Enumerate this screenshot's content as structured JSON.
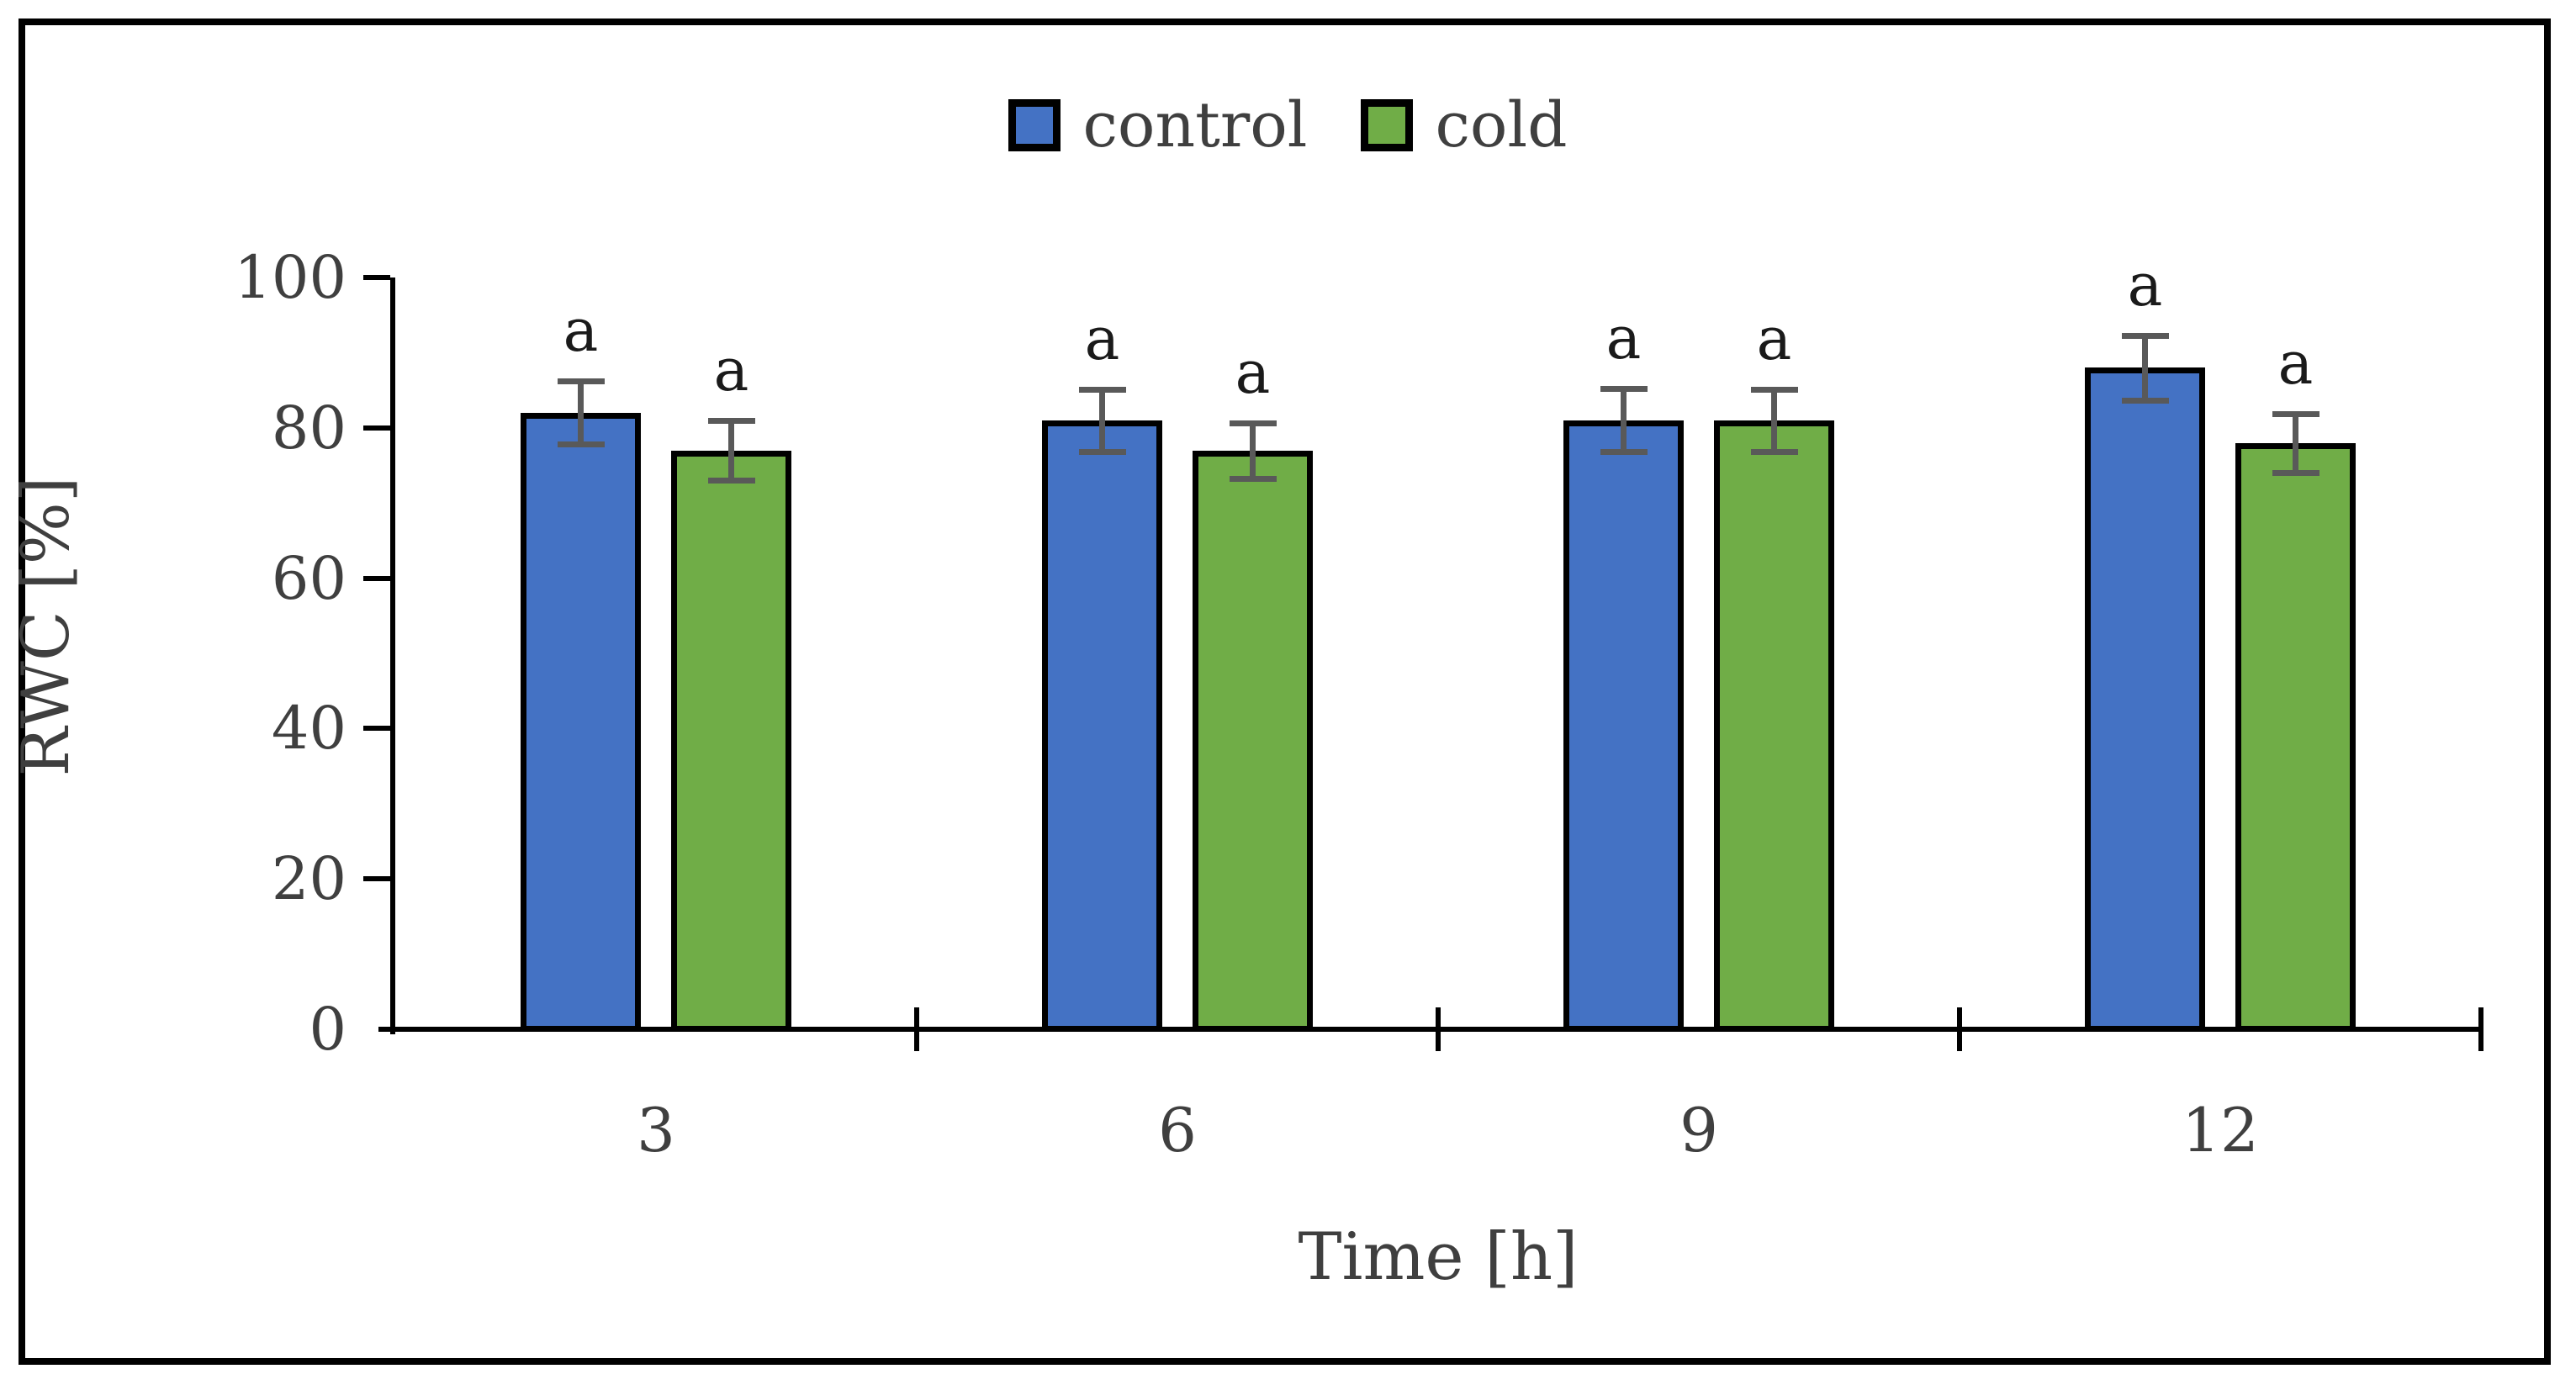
{
  "figure": {
    "background": "#ffffff",
    "border_color": "#000000",
    "text_color": "#3f3f3f",
    "axis_color": "#000000",
    "error_bar_color": "#595959",
    "sig_letter_color": "#1a1a1a"
  },
  "legend": {
    "items": [
      {
        "label": "control",
        "color": "#4472c4"
      },
      {
        "label": "cold",
        "color": "#70ad47"
      }
    ]
  },
  "axes": {
    "x_title": "Time [h]",
    "y_title": "RWC [%]"
  },
  "chart_data": {
    "type": "bar",
    "title": "",
    "xlabel": "Time [h]",
    "ylabel": "RWC [%]",
    "categories": [
      "3",
      "6",
      "9",
      "12"
    ],
    "series": [
      {
        "name": "control",
        "color": "#4472c4",
        "values": [
          82,
          81,
          81,
          88
        ],
        "errors": [
          4.2,
          4.1,
          4.2,
          4.3
        ],
        "sig_labels": [
          "a",
          "a",
          "a",
          "a"
        ]
      },
      {
        "name": "cold",
        "color": "#70ad47",
        "values": [
          77,
          77,
          81,
          78
        ],
        "errors": [
          4.0,
          3.7,
          4.1,
          3.9
        ],
        "sig_labels": [
          "a",
          "a",
          "a",
          "a"
        ]
      }
    ],
    "ylim": [
      0,
      100
    ],
    "yticks": [
      0,
      20,
      40,
      60,
      80,
      100
    ],
    "grid": false,
    "legend_position": "top-center",
    "bar_border_color": "#000000",
    "error_bar_color": "#595959",
    "significance_note": "letter a above every bar"
  }
}
